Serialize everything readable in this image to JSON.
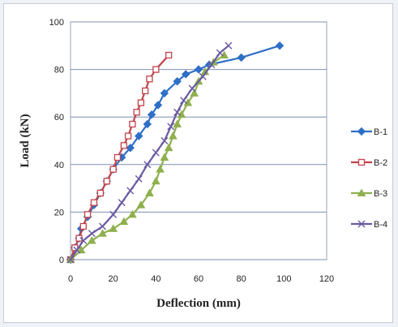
{
  "chart_data": {
    "type": "line",
    "xlabel": "Deflection (mm)",
    "ylabel": "Load (kN)",
    "xlim": [
      0,
      120
    ],
    "ylim": [
      0,
      100
    ],
    "x_ticks": [
      0,
      20,
      40,
      60,
      80,
      100,
      120
    ],
    "y_ticks": [
      0,
      20,
      40,
      60,
      80,
      100
    ],
    "grid": "horizontal",
    "legend_position": "right",
    "series": [
      {
        "name": "B-1",
        "color": "#2e6fc7",
        "marker": "diamond",
        "marker_fill": "#2e6fc7",
        "points": [
          [
            0,
            0
          ],
          [
            2,
            5
          ],
          [
            4,
            9
          ],
          [
            5,
            13
          ],
          [
            8,
            18
          ],
          [
            11,
            23
          ],
          [
            14,
            28
          ],
          [
            17,
            33
          ],
          [
            20,
            38
          ],
          [
            24,
            43
          ],
          [
            28,
            47
          ],
          [
            32,
            52
          ],
          [
            36,
            57
          ],
          [
            38,
            61
          ],
          [
            41,
            65
          ],
          [
            44,
            70
          ],
          [
            50,
            75
          ],
          [
            54,
            78
          ],
          [
            60,
            80
          ],
          [
            65,
            82
          ],
          [
            80,
            85
          ],
          [
            98,
            90
          ]
        ]
      },
      {
        "name": "B-2",
        "color": "#c0444a",
        "marker": "square",
        "marker_fill": "#ffffff",
        "points": [
          [
            0,
            0
          ],
          [
            2,
            5
          ],
          [
            4,
            9
          ],
          [
            6,
            14
          ],
          [
            8,
            19
          ],
          [
            11,
            24
          ],
          [
            14,
            28
          ],
          [
            17,
            33
          ],
          [
            20,
            38
          ],
          [
            22,
            43
          ],
          [
            25,
            48
          ],
          [
            27,
            52
          ],
          [
            29,
            57
          ],
          [
            31,
            62
          ],
          [
            33,
            66
          ],
          [
            35,
            71
          ],
          [
            37,
            76
          ],
          [
            40,
            80
          ],
          [
            46,
            86
          ]
        ]
      },
      {
        "name": "B-3",
        "color": "#8fb04e",
        "marker": "triangle",
        "marker_fill": "#8fb04e",
        "points": [
          [
            0,
            0
          ],
          [
            5,
            4
          ],
          [
            10,
            8
          ],
          [
            15,
            11
          ],
          [
            20,
            13
          ],
          [
            25,
            16
          ],
          [
            29,
            19
          ],
          [
            33,
            23
          ],
          [
            37,
            28
          ],
          [
            40,
            33
          ],
          [
            42,
            38
          ],
          [
            44,
            43
          ],
          [
            46,
            47
          ],
          [
            48,
            52
          ],
          [
            50,
            57
          ],
          [
            52,
            61
          ],
          [
            55,
            66
          ],
          [
            58,
            70
          ],
          [
            60,
            75
          ],
          [
            63,
            79
          ],
          [
            67,
            83
          ],
          [
            72,
            86
          ]
        ]
      },
      {
        "name": "B-4",
        "color": "#6a5aa2",
        "marker": "x",
        "marker_fill": "#6a5aa2",
        "points": [
          [
            0,
            0
          ],
          [
            3,
            4
          ],
          [
            6,
            8
          ],
          [
            10,
            11
          ],
          [
            15,
            14
          ],
          [
            20,
            19
          ],
          [
            24,
            24
          ],
          [
            28,
            29
          ],
          [
            32,
            34
          ],
          [
            36,
            40
          ],
          [
            40,
            45
          ],
          [
            44,
            50
          ],
          [
            47,
            56
          ],
          [
            50,
            62
          ],
          [
            53,
            67
          ],
          [
            57,
            72
          ],
          [
            62,
            77
          ],
          [
            66,
            82
          ],
          [
            70,
            87
          ],
          [
            74,
            90
          ]
        ]
      }
    ]
  }
}
